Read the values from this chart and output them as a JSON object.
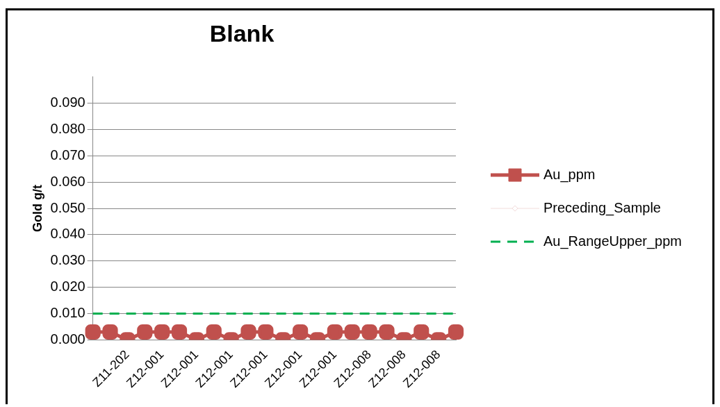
{
  "chart_data": {
    "type": "line",
    "title": "Blank",
    "ylabel": "Gold g/t",
    "categories": [
      null,
      null,
      "Z11-202",
      null,
      "Z12-001",
      null,
      "Z12-001",
      null,
      "Z12-001",
      null,
      "Z12-001",
      null,
      "Z12-001",
      null,
      "Z12-001",
      null,
      "Z12-008",
      null,
      "Z12-008",
      null,
      "Z12-008",
      null
    ],
    "series": [
      {
        "name": "Au_ppm",
        "color": "#c0504d",
        "marker": "square",
        "line_style": "solid",
        "values": [
          0.003,
          0.003,
          0,
          0.003,
          0.003,
          0.003,
          0,
          0.003,
          0,
          0.003,
          0.003,
          0,
          0.003,
          0,
          0.003,
          0.003,
          0.003,
          0.003,
          0,
          0.003,
          0,
          0.003
        ]
      },
      {
        "name": "Preceding_Sample",
        "color": "#f2dcdb",
        "marker": "diamond",
        "line_style": "solid",
        "values": [
          null,
          null,
          null,
          null,
          null,
          null,
          null,
          null,
          null,
          null,
          null,
          null,
          null,
          null,
          null,
          null,
          null,
          null,
          null,
          null,
          null,
          null
        ]
      },
      {
        "name": "Au_RangeUpper_ppm",
        "color": "#00b050",
        "marker": "none",
        "line_style": "dashed",
        "values": [
          0.01,
          0.01,
          0.01,
          0.01,
          0.01,
          0.01,
          0.01,
          0.01,
          0.01,
          0.01,
          0.01,
          0.01,
          0.01,
          0.01,
          0.01,
          0.01,
          0.01,
          0.01,
          0.01,
          0.01,
          0.01,
          0.01
        ]
      }
    ],
    "ylim": [
      0,
      0.1
    ],
    "yticks": [
      {
        "value": 0,
        "label": "0.000"
      },
      {
        "value": 0.01,
        "label": "0.010"
      },
      {
        "value": 0.02,
        "label": "0.020"
      },
      {
        "value": 0.03,
        "label": "0.030"
      },
      {
        "value": 0.04,
        "label": "0.040"
      },
      {
        "value": 0.05,
        "label": "0.050"
      },
      {
        "value": 0.06,
        "label": "0.060"
      },
      {
        "value": 0.07,
        "label": "0.070"
      },
      {
        "value": 0.08,
        "label": "0.080"
      },
      {
        "value": 0.09,
        "label": "0.090"
      }
    ],
    "grid": "y",
    "legend": "right"
  }
}
